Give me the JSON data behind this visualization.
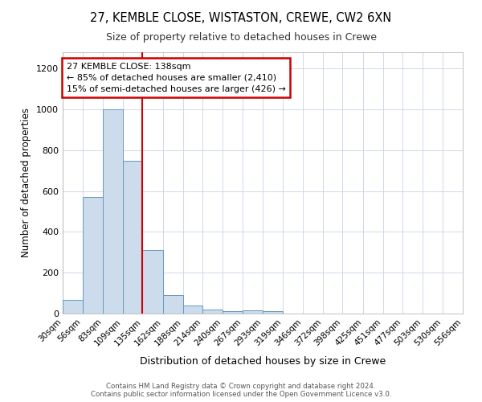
{
  "title1": "27, KEMBLE CLOSE, WISTASTON, CREWE, CW2 6XN",
  "title2": "Size of property relative to detached houses in Crewe",
  "xlabel": "Distribution of detached houses by size in Crewe",
  "ylabel": "Number of detached properties",
  "bin_edges": [
    30,
    56,
    83,
    109,
    135,
    162,
    188,
    214,
    240,
    267,
    293,
    319,
    346,
    372,
    398,
    425,
    451,
    477,
    503,
    530,
    556
  ],
  "bar_heights": [
    65,
    570,
    1000,
    750,
    310,
    90,
    40,
    20,
    10,
    15,
    10,
    0,
    0,
    0,
    0,
    0,
    0,
    0,
    0,
    0
  ],
  "bar_color": "#ccdcec",
  "bar_edge_color": "#6699bb",
  "vline_x": 135,
  "vline_color": "#cc0000",
  "ylim": [
    0,
    1280
  ],
  "yticks": [
    0,
    200,
    400,
    600,
    800,
    1000,
    1200
  ],
  "annotation_text": "27 KEMBLE CLOSE: 138sqm\n← 85% of detached houses are smaller (2,410)\n15% of semi-detached houses are larger (426) →",
  "annotation_box_color": "#cc0000",
  "footer_text": "Contains HM Land Registry data © Crown copyright and database right 2024.\nContains public sector information licensed under the Open Government Licence v3.0.",
  "bg_color": "#ffffff",
  "grid_color": "#d0d8e8"
}
